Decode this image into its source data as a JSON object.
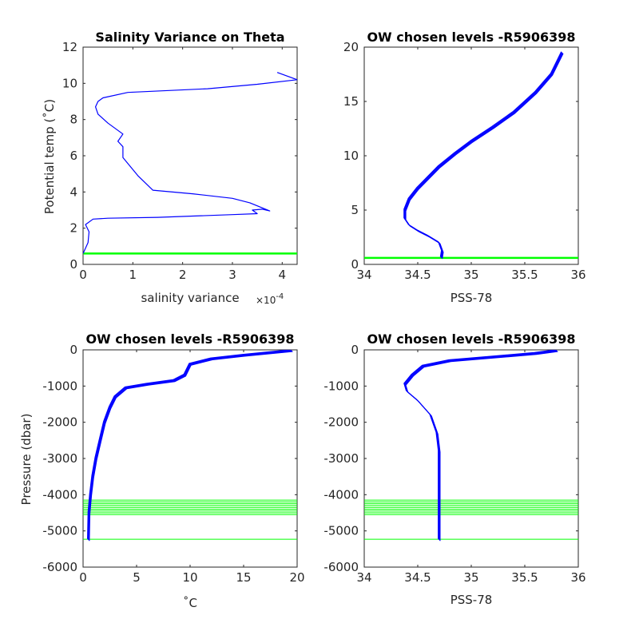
{
  "colors": {
    "profile": "#0000ff",
    "levels": "#00ff00",
    "axis": "#262626"
  },
  "chart_data": [
    {
      "id": "p1",
      "type": "line",
      "title": "Salinity Variance on Theta",
      "xlabel": "salinity variance",
      "x_exponent_label": "×10",
      "x_exponent_power": "-4",
      "ylabel": "Potential temp (˚C)",
      "xlim": [
        0,
        4.3
      ],
      "ylim": [
        0,
        12
      ],
      "xticks": [
        0,
        1,
        2,
        3,
        4
      ],
      "xtick_labels": [
        "0",
        "1",
        "2",
        "3",
        "4"
      ],
      "yticks": [
        0,
        2,
        4,
        6,
        8,
        10,
        12
      ],
      "ytick_labels": [
        "0",
        "2",
        "4",
        "6",
        "8",
        "10",
        "12"
      ],
      "series": [
        {
          "x": [
            0,
            0.1,
            0.12,
            0.05,
            0.2,
            0.5,
            1.5,
            3.0,
            3.5,
            3.4,
            3.6,
            3.75,
            3.35,
            3.0,
            2.2,
            1.4,
            1.1,
            0.8,
            0.8,
            0.7,
            0.8,
            0.5,
            0.3,
            0.25,
            0.3,
            0.4,
            0.9,
            2.5,
            3.5,
            4.3,
            3.9
          ],
          "y": [
            0.6,
            1.2,
            1.8,
            2.2,
            2.5,
            2.55,
            2.6,
            2.75,
            2.8,
            3.0,
            3.05,
            2.95,
            3.4,
            3.65,
            3.9,
            4.1,
            4.9,
            5.9,
            6.5,
            6.8,
            7.2,
            7.8,
            8.3,
            8.7,
            9.0,
            9.2,
            9.5,
            9.7,
            9.95,
            10.2,
            10.6
          ]
        }
      ],
      "hlines": [
        0.6
      ]
    },
    {
      "id": "p2",
      "type": "line",
      "title": "OW chosen levels -R5906398",
      "xlabel": "PSS-78",
      "ylabel": "",
      "xlim": [
        34,
        36
      ],
      "ylim": [
        0,
        20
      ],
      "xticks": [
        34,
        34.5,
        35,
        35.5,
        36
      ],
      "xtick_labels": [
        "34",
        "34.5",
        "35",
        "35.5",
        "36"
      ],
      "yticks": [
        0,
        5,
        10,
        15,
        20
      ],
      "ytick_labels": [
        "0",
        "5",
        "10",
        "15",
        "20"
      ],
      "series": [
        {
          "x": [
            34.72,
            34.73,
            34.7,
            34.6,
            34.5,
            34.42,
            34.38,
            34.38,
            34.42,
            34.5,
            34.6,
            34.7,
            34.85,
            35.0,
            35.2,
            35.4,
            35.6,
            35.75,
            35.85
          ],
          "y": [
            0.6,
            1.2,
            2.0,
            2.6,
            3.1,
            3.6,
            4.2,
            5.0,
            6.0,
            7.0,
            8.0,
            9.0,
            10.2,
            11.3,
            12.6,
            14.0,
            15.8,
            17.5,
            19.5
          ]
        }
      ],
      "hlines": [
        0.6
      ]
    },
    {
      "id": "p3",
      "type": "line",
      "title": "OW chosen levels -R5906398",
      "xlabel": "˚C",
      "ylabel": "Pressure (dbar)",
      "xlim": [
        0,
        20
      ],
      "ylim": [
        -6000,
        0
      ],
      "xticks": [
        0,
        5,
        10,
        15,
        20
      ],
      "xtick_labels": [
        "0",
        "5",
        "10",
        "15",
        "20"
      ],
      "yticks": [
        -6000,
        -5000,
        -4000,
        -3000,
        -2000,
        -1000,
        0
      ],
      "ytick_labels": [
        "-6000",
        "-5000",
        "-4000",
        "-3000",
        "-2000",
        "-1000",
        "0"
      ],
      "series": [
        {
          "x": [
            0.5,
            0.55,
            0.7,
            0.9,
            1.2,
            1.6,
            2.0,
            2.5,
            3.0,
            4.0,
            6.0,
            8.5,
            9.5,
            10.0,
            12.0,
            15.0,
            19.5
          ],
          "y": [
            -5250,
            -4500,
            -4000,
            -3500,
            -3000,
            -2500,
            -2000,
            -1600,
            -1300,
            -1050,
            -950,
            -850,
            -700,
            -400,
            -250,
            -150,
            -20
          ]
        }
      ],
      "hlines": [
        -4150,
        -4200,
        -4250,
        -4300,
        -4350,
        -4400,
        -4450,
        -4500,
        -4550,
        -5230
      ]
    },
    {
      "id": "p4",
      "type": "line",
      "title": "OW chosen levels -R5906398",
      "xlabel": "PSS-78",
      "ylabel": "",
      "xlim": [
        34,
        36
      ],
      "ylim": [
        -6000,
        0
      ],
      "xticks": [
        34,
        34.5,
        35,
        35.5,
        36
      ],
      "xtick_labels": [
        "34",
        "34.5",
        "35",
        "35.5",
        "36"
      ],
      "yticks": [
        -6000,
        -5000,
        -4000,
        -3000,
        -2000,
        -1000,
        0
      ],
      "ytick_labels": [
        "-6000",
        "-5000",
        "-4000",
        "-3000",
        "-2000",
        "-1000",
        "0"
      ],
      "series": [
        {
          "x": [
            34.7,
            34.7,
            34.7,
            34.7,
            34.68,
            34.62,
            34.5,
            34.4,
            34.38,
            34.45,
            34.55,
            34.8,
            35.2,
            35.6,
            35.8
          ],
          "y": [
            -5250,
            -4500,
            -3500,
            -2800,
            -2300,
            -1800,
            -1400,
            -1150,
            -950,
            -700,
            -450,
            -300,
            -200,
            -100,
            -20
          ]
        }
      ],
      "hlines": [
        -4150,
        -4200,
        -4250,
        -4300,
        -4350,
        -4400,
        -4450,
        -4500,
        -4550,
        -5230
      ]
    }
  ]
}
